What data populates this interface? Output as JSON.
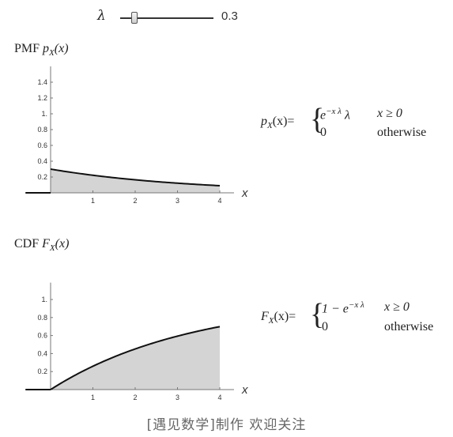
{
  "slider": {
    "symbol": "λ",
    "value": "0.3",
    "min": 0,
    "max": 2,
    "current": 0.3
  },
  "pmf": {
    "title_prefix": "PMF",
    "title_fn": "p",
    "title_sub": "X",
    "title_arg": "(x)",
    "formula": {
      "lhs_fn": "p",
      "lhs_sub": "X",
      "lhs_arg": "(x)=",
      "case1_expr": "e",
      "case1_exp": "−x λ",
      "case1_lambda": "λ",
      "case1_cond": "x ≥ 0",
      "case2_expr": "0",
      "case2_cond": "otherwise"
    }
  },
  "cdf": {
    "title_prefix": "CDF",
    "title_fn": "F",
    "title_sub": "X",
    "title_arg": "(x)",
    "formula": {
      "lhs_fn": "F",
      "lhs_sub": "X",
      "lhs_arg": "(x)=",
      "case1_expr": "1 − e",
      "case1_exp": "−x λ",
      "case1_cond": "x ≥ 0",
      "case2_expr": "0",
      "case2_cond": "otherwise"
    }
  },
  "chart_data": [
    {
      "type": "area",
      "function": "lambda*exp(-lambda*x)",
      "lambda": 0.3,
      "xlabel": "x",
      "ylabel": "",
      "xlim": [
        -0.5,
        4
      ],
      "ylim": [
        0,
        1.5
      ],
      "x_ticks": [
        "1",
        "2",
        "3",
        "4"
      ],
      "y_ticks": [
        "0.2",
        "0.4",
        "0.6",
        "0.8",
        "1.",
        "1.2",
        "1.4"
      ],
      "shade_from": 0,
      "shade_to": 4,
      "grid": false
    },
    {
      "type": "area",
      "function": "1-exp(-lambda*x)",
      "lambda": 0.3,
      "xlabel": "x",
      "ylabel": "",
      "xlim": [
        -0.5,
        4
      ],
      "ylim": [
        0,
        1.1
      ],
      "x_ticks": [
        "1",
        "2",
        "3",
        "4"
      ],
      "y_ticks": [
        "0.2",
        "0.4",
        "0.6",
        "0.8",
        "1."
      ],
      "shade_from": 0,
      "shade_to": 4,
      "grid": false
    }
  ],
  "footer": "[遇见数学]制作   欢迎关注"
}
